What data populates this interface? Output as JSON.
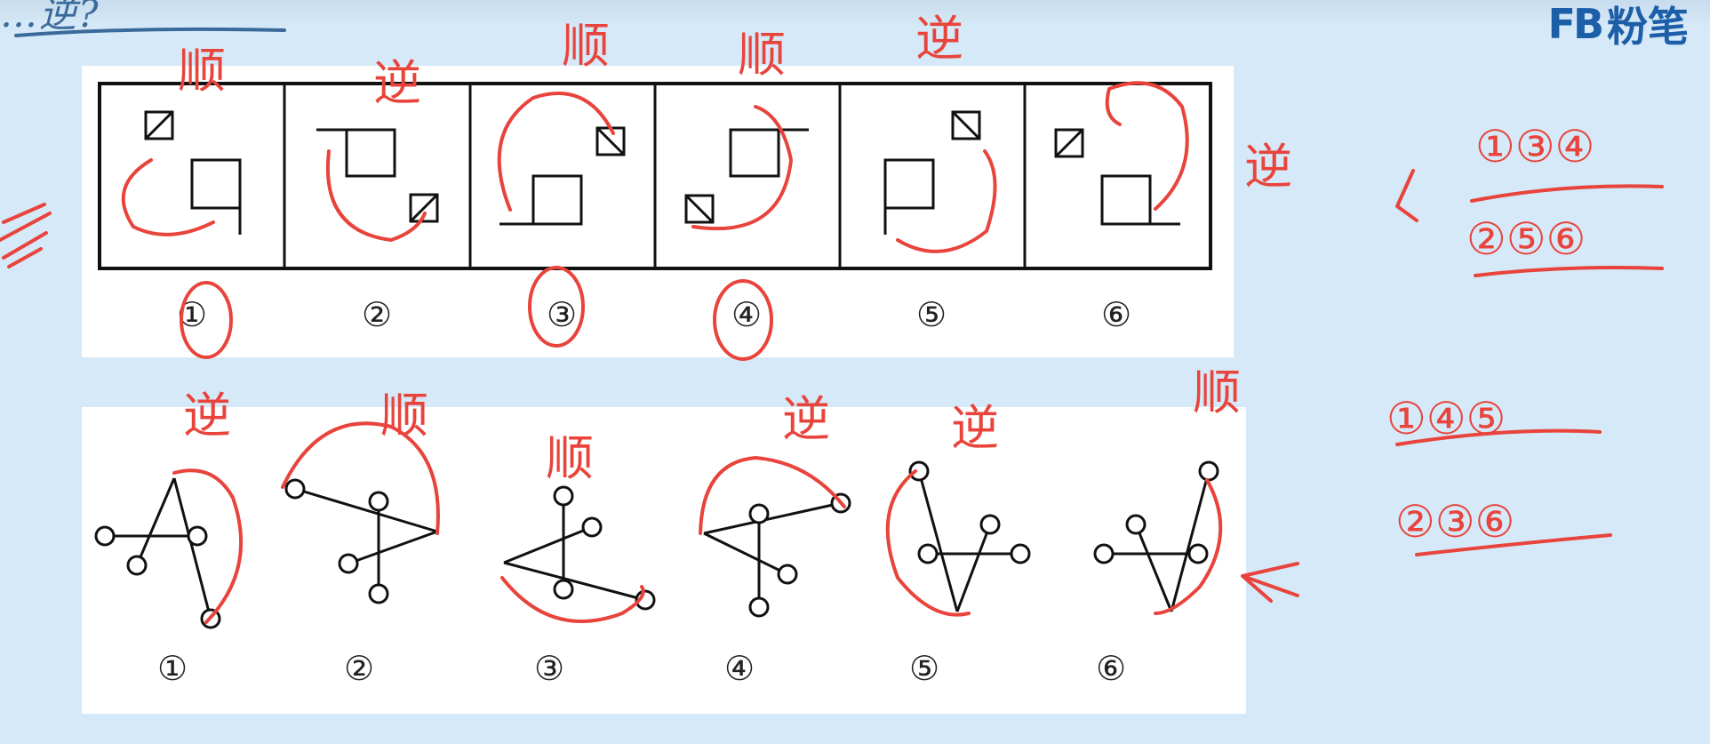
{
  "header": {
    "heading_scrawl": "…逆?",
    "logo_mark": "FB",
    "logo_text": "粉笔"
  },
  "top_panel": {
    "labels": [
      "①",
      "②",
      "③",
      "④",
      "⑤",
      "⑥"
    ]
  },
  "bottom_panel": {
    "labels": [
      "①",
      "②",
      "③",
      "④",
      "⑤",
      "⑥"
    ]
  },
  "annotations": {
    "top": [
      "顺",
      "逆",
      "顺",
      "顺",
      "逆",
      "逆"
    ],
    "bottom": [
      "逆",
      "顺",
      "顺",
      "逆",
      "逆",
      "顺"
    ],
    "groups_top": [
      "①③④",
      "②⑤⑥"
    ],
    "groups_bottom": [
      "①④⑤",
      "②③⑥"
    ]
  },
  "colors": {
    "ink": "#e8443c",
    "background": "#d6e9f8",
    "brand": "#1c5fa8"
  }
}
